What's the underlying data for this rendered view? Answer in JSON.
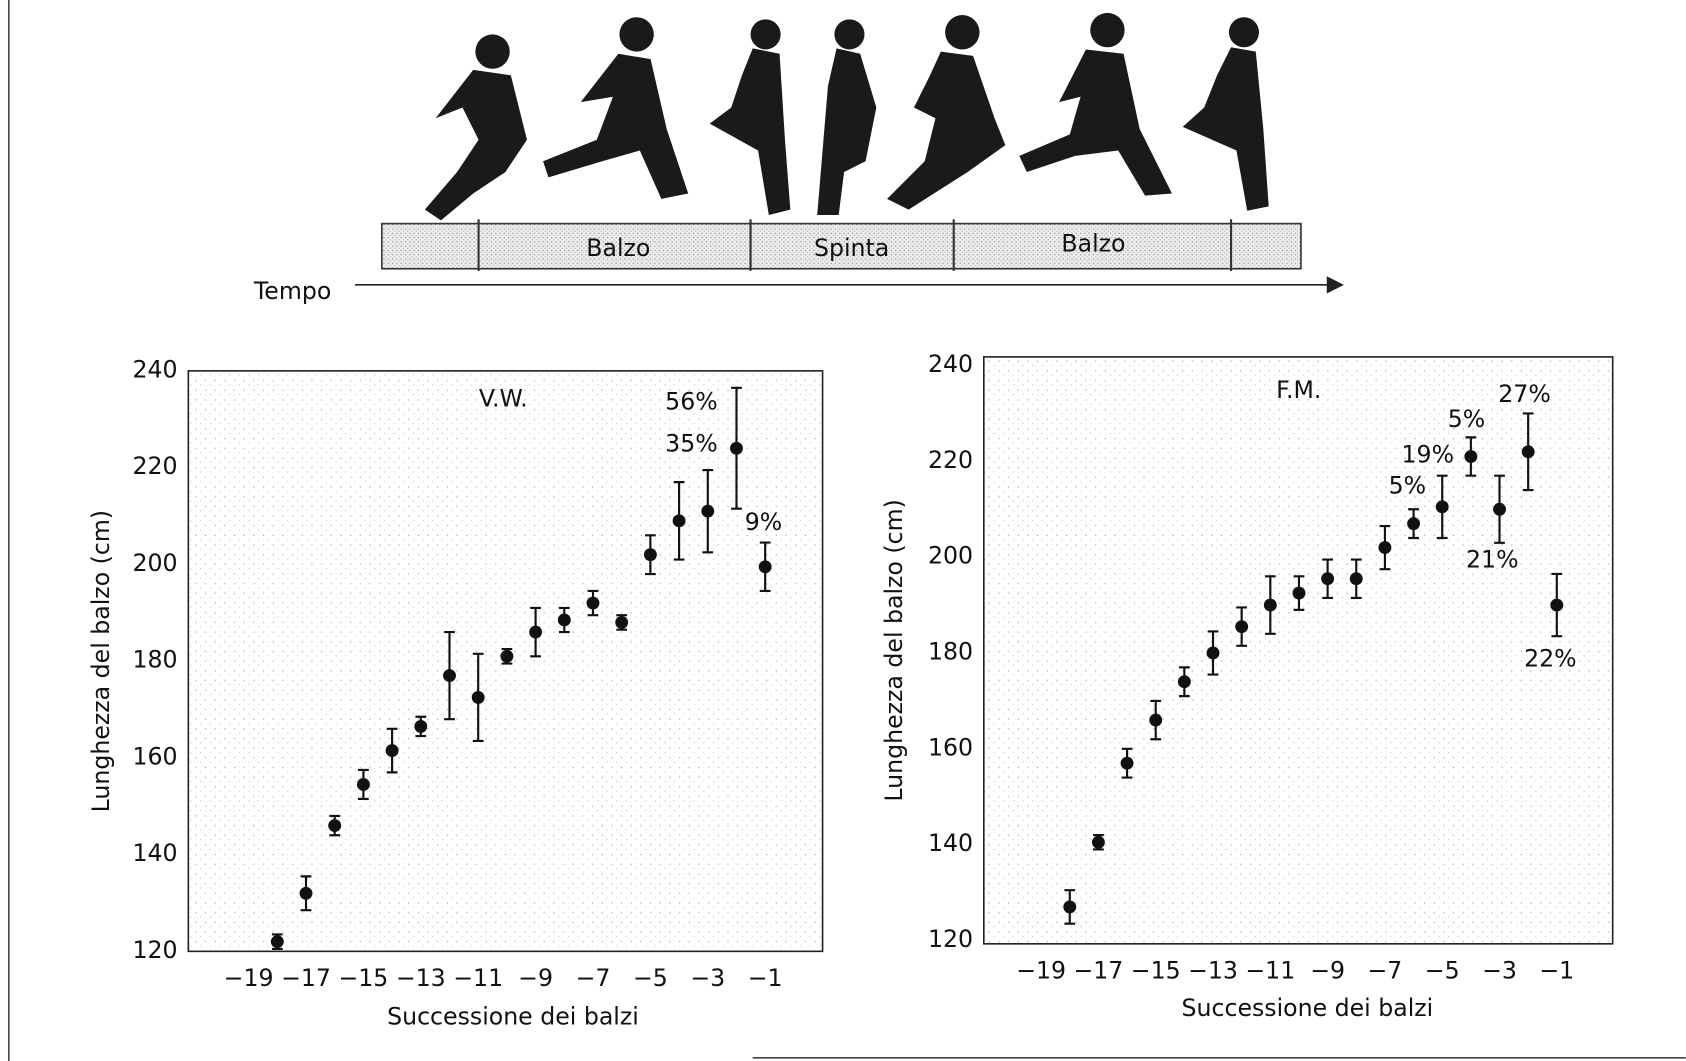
{
  "diagram": {
    "phases": [
      "Balzo",
      "Spinta",
      "Balzo"
    ],
    "time_label": "Tempo"
  },
  "chart_data": [
    {
      "type": "scatter",
      "title": "V.W.",
      "x": [
        -18,
        -17,
        -16,
        -15,
        -14,
        -13,
        -12,
        -11,
        -10,
        -9,
        -8,
        -7,
        -6,
        -5,
        -4,
        -3,
        -2,
        -1
      ],
      "series": [
        {
          "color": "#111111",
          "values": [
            122,
            132,
            146,
            154.5,
            161.5,
            166.5,
            177,
            172.5,
            181,
            186,
            188.5,
            192,
            188,
            202,
            209,
            211,
            224,
            199.5
          ],
          "errors": [
            1.5,
            3.5,
            2,
            3,
            4.5,
            2,
            9,
            9,
            1.5,
            5,
            2.5,
            2.5,
            1.5,
            4,
            8,
            8.5,
            12.5,
            5
          ]
        }
      ],
      "xlim": [
        -21.1,
        1.0
      ],
      "ylim": [
        120,
        240
      ],
      "xticks": [
        {
          "value": -19,
          "label": "−19"
        },
        {
          "value": -17,
          "label": "−17"
        },
        {
          "value": -15,
          "label": "−15"
        },
        {
          "value": -13,
          "label": "−13"
        },
        {
          "value": -11,
          "label": "−11"
        },
        {
          "value": -9,
          "label": "−9"
        },
        {
          "value": -7,
          "label": "−7"
        },
        {
          "value": -5,
          "label": "−5"
        },
        {
          "value": -3,
          "label": "−3"
        },
        {
          "value": -1,
          "label": "−1"
        }
      ],
      "yticks": [
        120,
        140,
        160,
        180,
        200,
        220,
        240
      ],
      "xlabel": "Successione dei balzi",
      "ylabel": "Lunghezza del balzo (cm)",
      "annotations": [
        "56%",
        "35%",
        "9%"
      ]
    },
    {
      "type": "scatter",
      "title": "F.M.",
      "x": [
        -18,
        -17,
        -16,
        -15,
        -14,
        -13,
        -12,
        -11,
        -10,
        -9,
        -8,
        -7,
        -6,
        -5,
        -4,
        -3,
        -2,
        -1
      ],
      "series": [
        {
          "color": "#111111",
          "values": [
            127,
            140.5,
            157,
            166,
            174,
            180,
            185.5,
            190,
            192.5,
            195.5,
            195.5,
            202,
            207,
            210.5,
            221,
            210,
            222,
            190
          ],
          "errors": [
            3.5,
            1.5,
            3,
            4,
            3,
            4.5,
            4,
            6,
            3.5,
            4,
            4,
            4.5,
            3,
            6.5,
            4,
            7,
            8,
            6.5
          ]
        }
      ],
      "xlim": [
        -21,
        0.95
      ],
      "ylim": [
        119.3,
        241.8
      ],
      "xticks": [
        {
          "value": -19,
          "label": "−19"
        },
        {
          "value": -17,
          "label": "−17"
        },
        {
          "value": -15,
          "label": "−15"
        },
        {
          "value": -13,
          "label": "−13"
        },
        {
          "value": -11,
          "label": "−11"
        },
        {
          "value": -9,
          "label": "−9"
        },
        {
          "value": -7,
          "label": "−7"
        },
        {
          "value": -5,
          "label": "−5"
        },
        {
          "value": -3,
          "label": "−3"
        },
        {
          "value": -1,
          "label": "−1"
        }
      ],
      "yticks": [
        120,
        140,
        160,
        180,
        200,
        220,
        240
      ],
      "xlabel": "Successione dei balzi",
      "ylabel": "Lunghezza del balzo (cm)",
      "annotations": [
        "5%",
        "19%",
        "5%",
        "27%",
        "21%",
        "22%"
      ]
    }
  ]
}
